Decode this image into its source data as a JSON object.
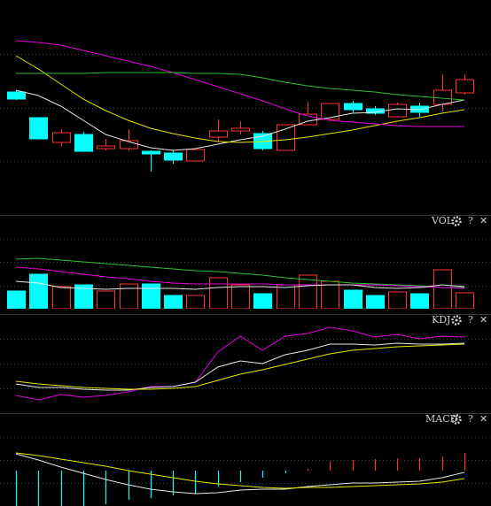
{
  "chart_data": [
    {
      "type": "candlestick",
      "open": [
        139,
        110,
        82,
        91,
        75,
        75,
        72,
        70,
        61,
        88,
        95,
        92,
        73,
        102,
        108,
        126,
        120,
        111,
        123,
        125,
        138
      ],
      "close": [
        131,
        86,
        93,
        72,
        78,
        84,
        69,
        62,
        74,
        95,
        98,
        75,
        102,
        114,
        126,
        119,
        115,
        125,
        116,
        141,
        153
      ],
      "high": [
        141,
        110,
        97,
        94,
        86,
        97,
        73,
        73,
        74,
        108,
        106,
        95,
        102,
        128,
        126,
        129,
        123,
        127,
        127,
        159,
        159
      ],
      "low": [
        130,
        86,
        78,
        71,
        73,
        73,
        49,
        58,
        61,
        83,
        91,
        73,
        73,
        102,
        106,
        116,
        113,
        110,
        111,
        117,
        136
      ],
      "up_color": "#ff3232",
      "down_color": "#00ffff",
      "series": [
        {
          "color": "#e8e8e8",
          "values": [
            141,
            135,
            123,
            107,
            91,
            83,
            76,
            73,
            75,
            80,
            85,
            89,
            97,
            106,
            110,
            115,
            116,
            120,
            119,
            125,
            130
          ]
        },
        {
          "color": "#e6e600",
          "values": [
            180,
            165,
            148,
            131,
            118,
            107,
            98,
            92,
            87,
            83,
            82,
            83,
            85,
            88,
            92,
            96,
            101,
            106,
            110,
            115,
            119
          ]
        },
        {
          "color": "#e000e0",
          "values": [
            197,
            195,
            192,
            186,
            180,
            174,
            168,
            161,
            153,
            145,
            137,
            129,
            120,
            112,
            107,
            105,
            103,
            101,
            100,
            100,
            100
          ]
        },
        {
          "color": "#30c030",
          "values": [
            160,
            160,
            160,
            160,
            161,
            161,
            161,
            161,
            160,
            160,
            159,
            155,
            150,
            146,
            143,
            141,
            139,
            136,
            134,
            132,
            130
          ]
        }
      ],
      "ylim": [
        0,
        243
      ]
    },
    {
      "type": "bar",
      "title": "VOL",
      "help": "?",
      "close": "✕",
      "values": [
        20,
        39,
        25,
        27,
        20,
        28,
        28,
        15,
        15,
        35,
        27,
        17,
        27,
        38,
        31,
        21,
        15,
        19,
        17,
        44,
        18
      ],
      "up_color": "#ff3232",
      "down_color": "#00ffff",
      "series": [
        {
          "color": "#30c030",
          "values": [
            56,
            57,
            55,
            53,
            51,
            49,
            47,
            45,
            43,
            42,
            40,
            38,
            35,
            33,
            31,
            29,
            28,
            27,
            26,
            24,
            24
          ]
        },
        {
          "color": "#e000e0",
          "values": [
            47,
            45,
            42,
            39,
            36,
            34,
            31,
            29,
            28,
            28,
            28,
            28,
            27,
            27,
            27,
            27,
            27,
            26,
            25,
            24,
            23
          ]
        },
        {
          "color": "#e8e8e8",
          "values": [
            31,
            29,
            24,
            23,
            22,
            23,
            23,
            23,
            22,
            24,
            25,
            25,
            24,
            26,
            27,
            27,
            24,
            23,
            24,
            27,
            25
          ]
        }
      ],
      "ylim": [
        0,
        106
      ]
    },
    {
      "type": "line",
      "title": "KDJ",
      "help": "?",
      "close": "✕",
      "series": [
        {
          "color": "#e000e0",
          "values": [
            20,
            15,
            21,
            18,
            20,
            24,
            30,
            30,
            35,
            69,
            87,
            71,
            87,
            90,
            97,
            93,
            86,
            89,
            84,
            87,
            86
          ]
        },
        {
          "color": "#e8e8e8",
          "values": [
            33,
            29,
            29,
            27,
            26,
            26,
            29,
            30,
            35,
            52,
            59,
            56,
            66,
            71,
            78,
            78,
            77,
            79,
            78,
            78,
            79
          ]
        },
        {
          "color": "#e6e600",
          "values": [
            36,
            33,
            31,
            29,
            28,
            27,
            27,
            28,
            30,
            37,
            44,
            49,
            55,
            61,
            67,
            71,
            73,
            75,
            76,
            77,
            78
          ]
        }
      ],
      "ylim": [
        0,
        112
      ]
    },
    {
      "type": "macd",
      "title": "MACD",
      "help": "?",
      "close": "✕",
      "values": [
        -45,
        -42,
        -40,
        -40,
        -38,
        -33,
        -31,
        -28,
        -26,
        -18,
        -13,
        -8,
        -3,
        2,
        10,
        12,
        13,
        14,
        14,
        16,
        20
      ],
      "up_color": "#ff3232",
      "down_color": "#00ffff",
      "series": [
        {
          "color": "#e8e8e8",
          "values": [
            19,
            12,
            4,
            -3,
            -10,
            -16,
            -21,
            -24,
            -26,
            -25,
            -22,
            -21,
            -21,
            -18,
            -16,
            -14,
            -14,
            -13,
            -12,
            -8,
            -2
          ]
        },
        {
          "color": "#e6e600",
          "values": [
            20,
            17,
            13,
            9,
            5,
            0,
            -4,
            -8,
            -12,
            -15,
            -17,
            -19,
            -20,
            -19,
            -19,
            -18,
            -17,
            -16,
            -15,
            -13,
            -9
          ]
        }
      ],
      "ylim": [
        -40,
        64
      ]
    }
  ]
}
